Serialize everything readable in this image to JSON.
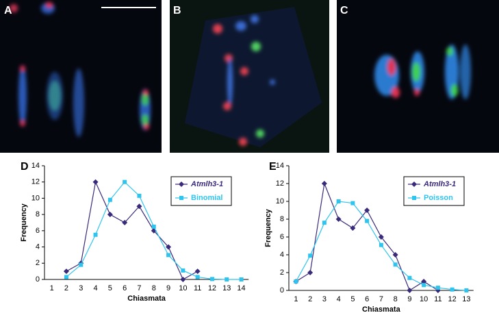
{
  "panels": [
    {
      "label": "A"
    },
    {
      "label": "B"
    },
    {
      "label": "C"
    }
  ],
  "chart_data": [
    {
      "type": "line",
      "panel_label": "D",
      "x_label": "Chiasmata",
      "y_label": "Frequency",
      "categories": [
        1,
        2,
        3,
        4,
        5,
        6,
        7,
        8,
        9,
        10,
        11,
        12,
        13,
        14
      ],
      "ylim": [
        0,
        14
      ],
      "yticks": [
        0,
        2,
        4,
        6,
        8,
        10,
        12,
        14
      ],
      "series": [
        {
          "name": "Atmlh3-1",
          "color": "#3a2a7a",
          "marker": "diamond",
          "values": [
            null,
            1,
            2,
            12,
            8,
            7,
            9,
            6,
            4,
            0,
            1,
            null,
            null,
            null
          ]
        },
        {
          "name": "Binomial",
          "color": "#2ec4ee",
          "marker": "square",
          "values": [
            null,
            0.3,
            1.8,
            5.5,
            9.8,
            12,
            10.3,
            6.5,
            3,
            1.1,
            0.3,
            0.05,
            0,
            0
          ]
        }
      ]
    },
    {
      "type": "line",
      "panel_label": "E",
      "x_label": "Chiasmata",
      "y_label": "Frequency",
      "categories": [
        1,
        2,
        3,
        4,
        5,
        6,
        7,
        8,
        9,
        10,
        11,
        12,
        13
      ],
      "ylim": [
        0,
        14
      ],
      "yticks": [
        0,
        2,
        4,
        6,
        8,
        10,
        12,
        14
      ],
      "series": [
        {
          "name": "Atmlh3-1",
          "color": "#3a2a7a",
          "marker": "diamond",
          "values": [
            1,
            2,
            12,
            8,
            7,
            9,
            6,
            4,
            0,
            1,
            0,
            null,
            null
          ]
        },
        {
          "name": "Poisson",
          "color": "#2ec4ee",
          "marker": "square",
          "values": [
            1,
            3.9,
            7.6,
            10,
            9.8,
            7.8,
            5.1,
            2.9,
            1.4,
            0.6,
            0.3,
            0.1,
            0
          ]
        }
      ]
    }
  ]
}
